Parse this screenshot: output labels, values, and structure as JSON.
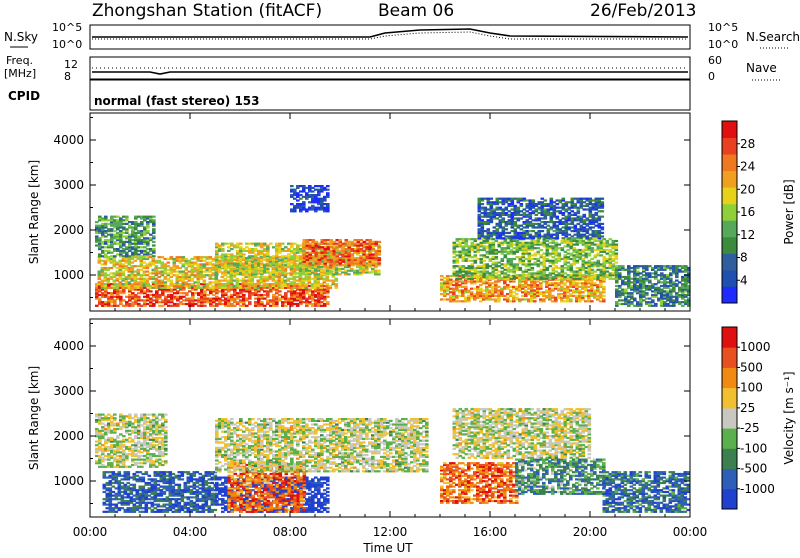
{
  "header": {
    "station": "Zhongshan Station (fitACF)",
    "beam": "Beam 06",
    "date": "26/Feb/2013"
  },
  "top_panels": {
    "nsky_label": "N.Sky",
    "nsky_ticks": [
      "10^5",
      "10^0"
    ],
    "nsearch_label": "N.Search",
    "nsearch_ticks": [
      "10^5",
      "10^0"
    ],
    "freq_label": "Freq.",
    "freq_unit": "[MHz]",
    "freq_ticks": [
      "8",
      "12"
    ],
    "nave_label": "Nave",
    "nave_ticks": [
      "60",
      "0"
    ],
    "cpid_label": "CPID",
    "cpid_text": "normal (fast stereo) 153"
  },
  "chart_data": [
    {
      "type": "heatmap",
      "panel": "power",
      "ylabel": "Slant Range [km]",
      "xlabel": "Time UT",
      "ylim": [
        200,
        4600
      ],
      "xlim": [
        0,
        24
      ],
      "yticks": [
        "1000",
        "2000",
        "3000",
        "4000"
      ],
      "xticks": [
        "00:00",
        "04:00",
        "08:00",
        "12:00",
        "16:00",
        "20:00",
        "00:00"
      ],
      "colorbar": {
        "label": "Power [dB]",
        "ticks": [
          "4",
          "8",
          "12",
          "16",
          "20",
          "24",
          "28"
        ],
        "colors": [
          "#1e2bff",
          "#1f4fb0",
          "#2e5e9e",
          "#3c8a3c",
          "#56a95a",
          "#8fd03a",
          "#e6d21a",
          "#f0a020",
          "#f07820",
          "#e84020",
          "#e01010"
        ]
      },
      "regions": [
        {
          "t0": 0.2,
          "t1": 9.5,
          "r0": 300,
          "r1": 800,
          "level": 0.85
        },
        {
          "t0": 0.3,
          "t1": 9.8,
          "r0": 700,
          "r1": 1400,
          "level": 0.6
        },
        {
          "t0": 0.2,
          "t1": 2.5,
          "r0": 1400,
          "r1": 2300,
          "level": 0.35
        },
        {
          "t0": 5.0,
          "t1": 11.5,
          "r0": 1000,
          "r1": 1700,
          "level": 0.55
        },
        {
          "t0": 8.5,
          "t1": 11.5,
          "r0": 1200,
          "r1": 1800,
          "level": 0.8
        },
        {
          "t0": 8.0,
          "t1": 9.5,
          "r0": 2400,
          "r1": 3000,
          "level": 0.1
        },
        {
          "t0": 14.0,
          "t1": 20.5,
          "r0": 400,
          "r1": 1000,
          "level": 0.7
        },
        {
          "t0": 14.5,
          "t1": 21.0,
          "r0": 900,
          "r1": 1800,
          "level": 0.45
        },
        {
          "t0": 15.5,
          "t1": 20.5,
          "r0": 1800,
          "r1": 2700,
          "level": 0.2
        },
        {
          "t0": 21.0,
          "t1": 23.9,
          "r0": 300,
          "r1": 1200,
          "level": 0.3
        }
      ]
    },
    {
      "type": "heatmap",
      "panel": "velocity",
      "ylabel": "Slant Range [km]",
      "xlabel": "Time UT",
      "ylim": [
        200,
        4600
      ],
      "xlim": [
        0,
        24
      ],
      "yticks": [
        "1000",
        "2000",
        "3000",
        "4000"
      ],
      "xticks": [
        "00:00",
        "04:00",
        "08:00",
        "12:00",
        "16:00",
        "20:00",
        "00:00"
      ],
      "colorbar": {
        "label": "Velocity [m s⁻¹]",
        "ticks": [
          "1000",
          "500",
          "100",
          "25",
          "-25",
          "-100",
          "-500",
          "-1000"
        ],
        "colors": [
          "#2040d0",
          "#2e5fb8",
          "#3c8050",
          "#5ab04a",
          "#c8c8c0",
          "#f0c030",
          "#f08a10",
          "#e85020",
          "#e01010"
        ]
      },
      "regions": [
        {
          "t0": 0.2,
          "t1": 3.0,
          "r0": 1300,
          "r1": 2500,
          "level": 0.5
        },
        {
          "t0": 0.5,
          "t1": 5.0,
          "r0": 300,
          "r1": 1200,
          "level": 0.15
        },
        {
          "t0": 5.0,
          "t1": 9.5,
          "r0": 300,
          "r1": 1100,
          "level": 0.0
        },
        {
          "t0": 5.5,
          "t1": 8.5,
          "r0": 300,
          "r1": 1400,
          "level": 0.8
        },
        {
          "t0": 5.0,
          "t1": 13.5,
          "r0": 1200,
          "r1": 2400,
          "level": 0.5
        },
        {
          "t0": 14.0,
          "t1": 17.0,
          "r0": 500,
          "r1": 1400,
          "level": 0.8
        },
        {
          "t0": 17.0,
          "t1": 20.5,
          "r0": 700,
          "r1": 1500,
          "level": 0.3
        },
        {
          "t0": 14.5,
          "t1": 20.0,
          "r0": 1500,
          "r1": 2600,
          "level": 0.5
        },
        {
          "t0": 20.5,
          "t1": 23.9,
          "r0": 300,
          "r1": 1200,
          "level": 0.2
        }
      ]
    }
  ]
}
